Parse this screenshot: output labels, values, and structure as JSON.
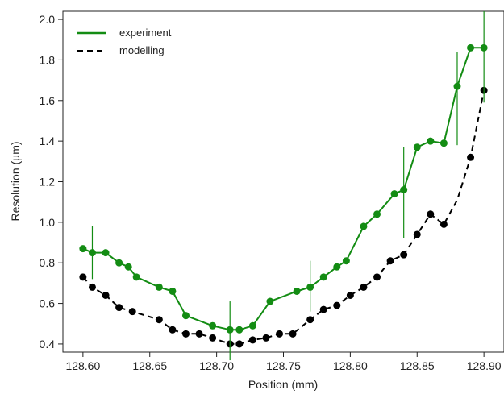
{
  "chart_data": {
    "type": "line",
    "xlabel": "Position (mm)",
    "ylabel": "Resolution (µm)",
    "xlim": [
      128.585,
      128.915
    ],
    "ylim": [
      0.36,
      2.04
    ],
    "x_ticks": [
      128.6,
      128.65,
      128.7,
      128.75,
      128.8,
      128.85,
      128.9
    ],
    "x_tick_labels": [
      "128.60",
      "128.65",
      "128.70",
      "128.75",
      "128.80",
      "128.85",
      "128.90"
    ],
    "y_ticks": [
      0.4,
      0.6,
      0.8,
      1.0,
      1.2,
      1.4,
      1.6,
      1.8,
      2.0
    ],
    "y_tick_labels": [
      "0.4",
      "0.6",
      "0.8",
      "1.0",
      "1.2",
      "1.4",
      "1.6",
      "1.8",
      "2.0"
    ],
    "grid": false,
    "legend_position": "top-left",
    "series": [
      {
        "name": "experiment",
        "style": "solid",
        "color": "#138c13",
        "points": [
          [
            128.6,
            0.87
          ],
          [
            128.607,
            0.85
          ],
          [
            128.617,
            0.85
          ],
          [
            128.627,
            0.8
          ],
          [
            128.634,
            0.78
          ],
          [
            128.64,
            0.73
          ],
          [
            128.657,
            0.68
          ],
          [
            128.667,
            0.66
          ],
          [
            128.677,
            0.54
          ],
          [
            128.697,
            0.49
          ],
          [
            128.71,
            0.47
          ],
          [
            128.717,
            0.47
          ],
          [
            128.727,
            0.49
          ],
          [
            128.74,
            0.61
          ],
          [
            128.76,
            0.66
          ],
          [
            128.77,
            0.68
          ],
          [
            128.78,
            0.73
          ],
          [
            128.79,
            0.78
          ],
          [
            128.797,
            0.81
          ],
          [
            128.81,
            0.98
          ],
          [
            128.82,
            1.04
          ],
          [
            128.833,
            1.14
          ],
          [
            128.84,
            1.16
          ],
          [
            128.85,
            1.37
          ],
          [
            128.86,
            1.4
          ],
          [
            128.87,
            1.39
          ],
          [
            128.88,
            1.67
          ],
          [
            128.89,
            1.86
          ],
          [
            128.9,
            1.86
          ]
        ],
        "error_bars": [
          {
            "x": 128.607,
            "low": 0.72,
            "high": 0.98
          },
          {
            "x": 128.71,
            "low": 0.32,
            "high": 0.61
          },
          {
            "x": 128.77,
            "low": 0.56,
            "high": 0.81
          },
          {
            "x": 128.84,
            "low": 0.92,
            "high": 1.37
          },
          {
            "x": 128.88,
            "low": 1.38,
            "high": 1.84
          },
          {
            "x": 128.9,
            "low": 1.59,
            "high": 2.04
          }
        ]
      },
      {
        "name": "modelling",
        "style": "dashed",
        "color": "#000000",
        "points": [
          [
            128.6,
            0.73
          ],
          [
            128.607,
            0.68
          ],
          [
            128.617,
            0.64
          ],
          [
            128.627,
            0.58
          ],
          [
            128.637,
            0.56
          ],
          [
            128.657,
            0.52
          ],
          [
            128.667,
            0.47
          ],
          [
            128.677,
            0.45
          ],
          [
            128.687,
            0.45
          ],
          [
            128.697,
            0.43
          ],
          [
            128.71,
            0.4
          ],
          [
            128.717,
            0.4
          ],
          [
            128.727,
            0.42
          ],
          [
            128.737,
            0.43
          ],
          [
            128.747,
            0.45
          ],
          [
            128.757,
            0.45
          ],
          [
            128.77,
            0.52
          ],
          [
            128.78,
            0.57
          ],
          [
            128.79,
            0.59
          ],
          [
            128.8,
            0.64
          ],
          [
            128.81,
            0.68
          ],
          [
            128.82,
            0.73
          ],
          [
            128.83,
            0.81
          ],
          [
            128.84,
            0.84
          ],
          [
            128.85,
            0.94
          ],
          [
            128.86,
            1.04
          ],
          [
            128.87,
            0.99
          ],
          [
            128.88,
            1.11
          ],
          [
            128.89,
            1.32
          ],
          [
            128.9,
            1.65
          ]
        ],
        "markers": [
          [
            128.6,
            0.73
          ],
          [
            128.607,
            0.68
          ],
          [
            128.617,
            0.64
          ],
          [
            128.627,
            0.58
          ],
          [
            128.637,
            0.56
          ],
          [
            128.657,
            0.52
          ],
          [
            128.667,
            0.47
          ],
          [
            128.677,
            0.45
          ],
          [
            128.687,
            0.45
          ],
          [
            128.697,
            0.43
          ],
          [
            128.71,
            0.4
          ],
          [
            128.717,
            0.4
          ],
          [
            128.727,
            0.42
          ],
          [
            128.737,
            0.43
          ],
          [
            128.747,
            0.45
          ],
          [
            128.757,
            0.45
          ],
          [
            128.77,
            0.52
          ],
          [
            128.78,
            0.57
          ],
          [
            128.79,
            0.59
          ],
          [
            128.8,
            0.64
          ],
          [
            128.81,
            0.68
          ],
          [
            128.82,
            0.73
          ],
          [
            128.83,
            0.81
          ],
          [
            128.84,
            0.84
          ],
          [
            128.85,
            0.94
          ],
          [
            128.86,
            1.04
          ],
          [
            128.87,
            0.99
          ],
          [
            128.89,
            1.32
          ],
          [
            128.9,
            1.65
          ]
        ]
      }
    ]
  }
}
